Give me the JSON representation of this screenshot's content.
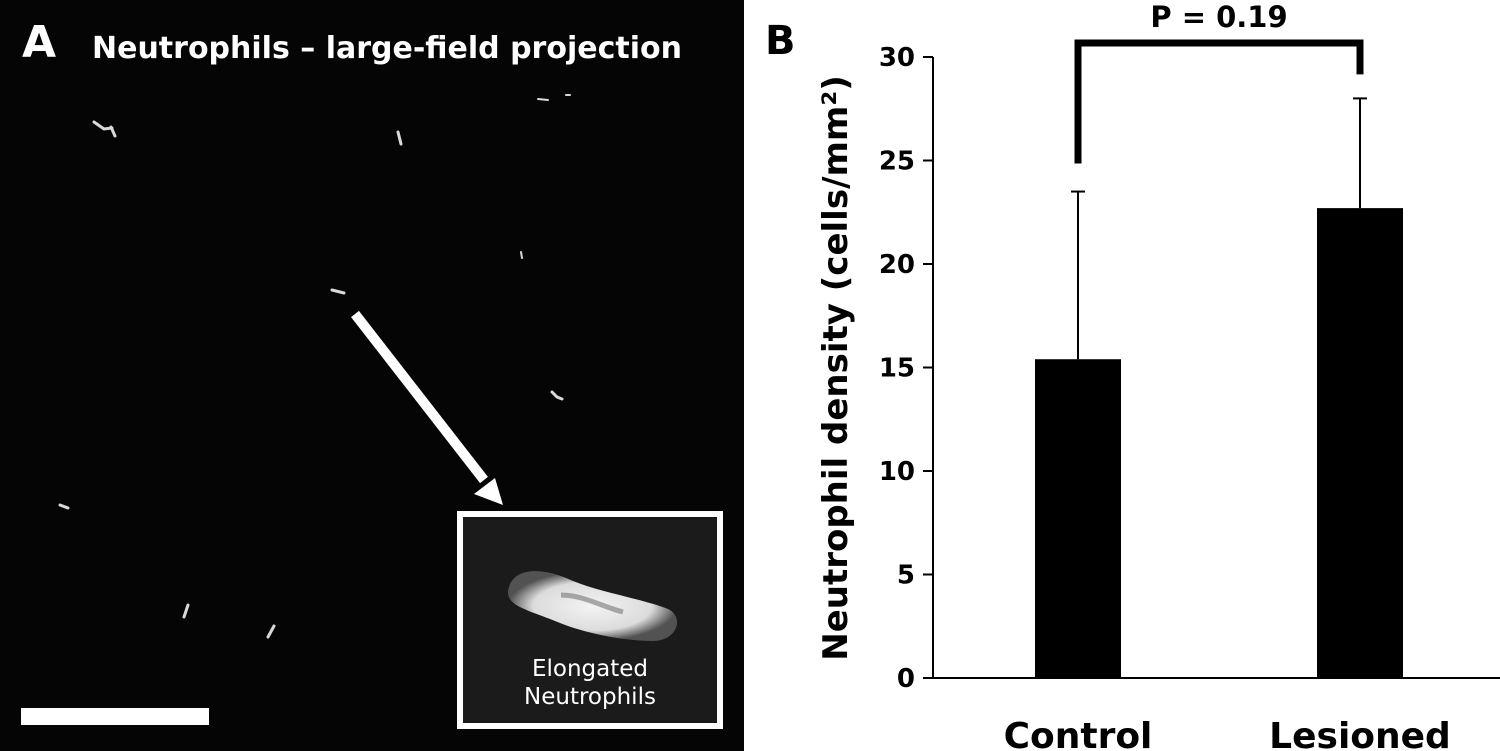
{
  "panel_a": {
    "label": "A",
    "title": "Neutrophils – large-field projection",
    "inset_text_line1": "Elongated",
    "inset_text_line2": "Neutrophils"
  },
  "panel_b": {
    "label": "B"
  },
  "chart_data": {
    "type": "bar",
    "categories": [
      "Control",
      "Lesioned"
    ],
    "values": [
      15.4,
      22.7
    ],
    "error_upper": [
      23.5,
      28.0
    ],
    "ylabel": "Neutrophil density (cells/mm²)",
    "ylim": [
      0,
      30
    ],
    "yticks": [
      0,
      5,
      10,
      15,
      20,
      25,
      30
    ],
    "grid": false,
    "bar_color": "#000000",
    "annotation": "P = 0.19"
  }
}
